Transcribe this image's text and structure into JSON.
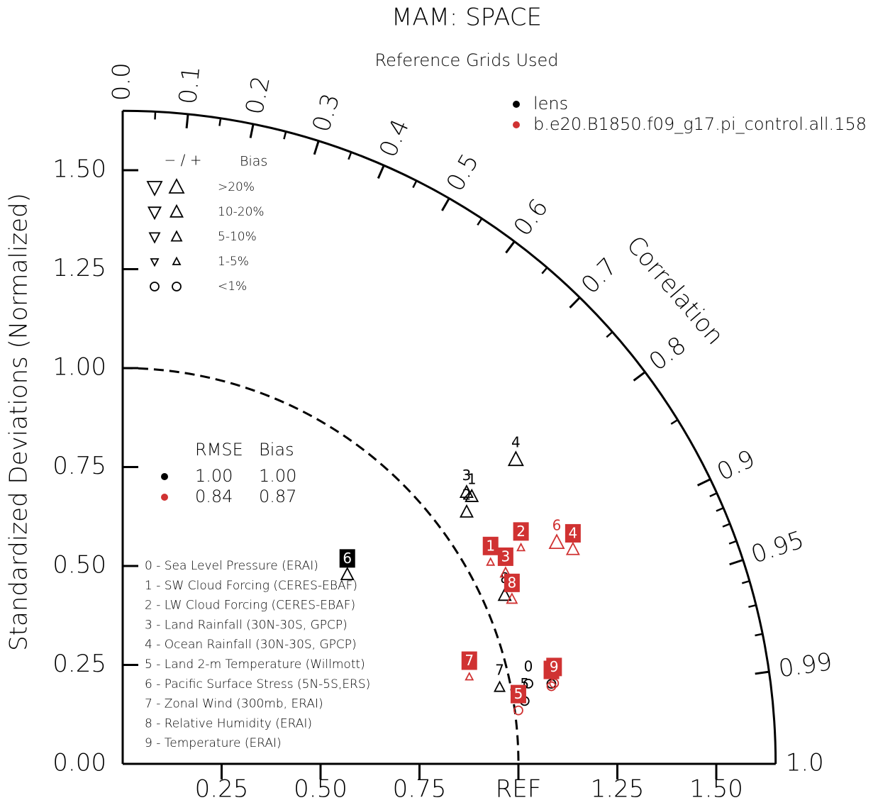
{
  "chart_data": {
    "type": "taylor",
    "title": "MAM: SPACE",
    "subtitle": "Reference Grids Used",
    "ylabel": "Standardized Deviations (Normalized)",
    "corr_label": "Correlation",
    "rlim": [
      0,
      1.65
    ],
    "ref": 1,
    "yticks": [
      {
        "value": 0,
        "label": "0.00"
      },
      0.25,
      {
        "value": 0.5,
        "label": "0.50"
      },
      0.75,
      {
        "value": 1,
        "label": "1.00"
      },
      1.25,
      {
        "value": 1.5,
        "label": "1.50"
      }
    ],
    "xticks": [
      0.25,
      {
        "value": 0.5,
        "label": "0.50"
      },
      0.75,
      {
        "value": 1,
        "label": "REF"
      },
      1.25,
      {
        "value": 1.5,
        "label": "1.50"
      }
    ],
    "corr_ticks": [
      {
        "value": 0,
        "label": "0.0"
      },
      0.1,
      0.2,
      0.3,
      0.4,
      0.5,
      0.6,
      0.7,
      0.8,
      0.9,
      0.95,
      0.99,
      {
        "value": 1,
        "label": "1.0"
      }
    ],
    "corr_minor_ticks": [
      0.05,
      0.15,
      0.25,
      0.35,
      0.45,
      0.55,
      0.65,
      0.75,
      0.85,
      0.91,
      0.92,
      0.93,
      0.94,
      0.96,
      0.97,
      0.98
    ],
    "point_labels": [
      "0",
      "1",
      "2",
      "3",
      "4",
      "5",
      "6",
      "7",
      "8",
      "9"
    ],
    "series": [
      {
        "name": "lens",
        "color": "#000000",
        "std": [
          1.045,
          1.111,
          1.077,
          1.107,
          1.256,
          1.028,
          0.742,
          0.972,
          1.055,
          1.102
        ],
        "corr": [
          0.981,
          0.794,
          0.807,
          0.785,
          0.791,
          0.988,
          0.765,
          0.98,
          0.915,
          0.983
        ],
        "bias_sign": [
          "+",
          "+",
          "+",
          "+",
          "+",
          "+",
          "+",
          "+",
          "+",
          "+"
        ],
        "bias_class": [
          4,
          1,
          1,
          1,
          0,
          4,
          1,
          2,
          1,
          4
        ],
        "boxed": [
          false,
          false,
          false,
          false,
          false,
          false,
          true,
          false,
          false,
          false
        ]
      },
      {
        "name": "b.e20.B1850.f09_g17.pi_control.all.158",
        "color": "#d03232",
        "std": [
          1.101,
          1.06,
          1.145,
          1.081,
          1.26,
          1.009,
          1.231,
          0.903,
          1.068,
          1.109
        ],
        "corr": [
          0.984,
          0.877,
          0.879,
          0.895,
          0.903,
          0.991,
          0.891,
          0.97,
          0.921,
          0.983
        ],
        "bias_sign": [
          "+",
          "+",
          "+",
          "+",
          "+",
          "+",
          "+",
          "+",
          "+",
          "+"
        ],
        "bias_class": [
          4,
          3,
          3,
          2,
          1,
          4,
          0,
          3,
          2,
          4
        ],
        "boxed": [
          true,
          true,
          true,
          true,
          true,
          true,
          false,
          true,
          true,
          true
        ]
      }
    ],
    "bias_legend": {
      "sign_header": "− / +",
      "header": "Bias",
      "rows": [
        ">20%",
        "10-20%",
        "5-10%",
        "1-5%",
        "<1%"
      ]
    },
    "rmse_table": {
      "header": [
        "RMSE",
        "Bias"
      ],
      "rows": [
        [
          "1.00",
          "1.00"
        ],
        [
          "0.84",
          "0.87"
        ]
      ]
    },
    "variables": [
      "0 - Sea Level Pressure (ERAI)",
      "1 - SW Cloud Forcing (CERES-EBAF)",
      "2 - LW Cloud Forcing (CERES-EBAF)",
      "3 - Land Rainfall (30N-30S, GPCP)",
      "4 - Ocean Rainfall (30N-30S, GPCP)",
      "5 - Land 2-m Temperature (Willmott)",
      "6 - Pacific Surface Stress (5N-5S,ERS)",
      "7 - Zonal Wind (300mb, ERAI)",
      "8 - Relative Humidity (ERAI)",
      "9 - Temperature (ERAI)"
    ]
  }
}
